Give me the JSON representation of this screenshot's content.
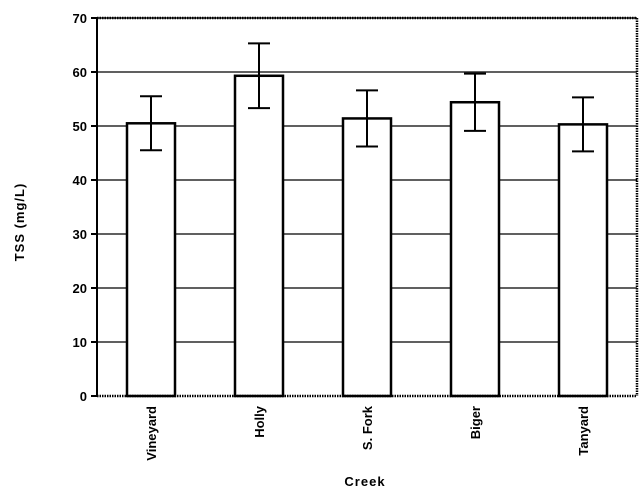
{
  "chart_data": {
    "type": "bar",
    "categories": [
      "Vineyard",
      "Holly",
      "S. Fork",
      "Biger",
      "Tanyard"
    ],
    "values": [
      50.5,
      59.3,
      51.4,
      54.4,
      50.3
    ],
    "error": [
      5.0,
      6.0,
      5.2,
      5.3,
      5.0
    ],
    "xlabel": "Creek",
    "ylabel": "TSS  (mg/L)",
    "ylim": [
      0,
      70
    ],
    "yticks": [
      0,
      10,
      20,
      30,
      40,
      50,
      60,
      70
    ],
    "grid": true,
    "bar_fill": "#ffffff",
    "bar_stroke": "#000000"
  }
}
